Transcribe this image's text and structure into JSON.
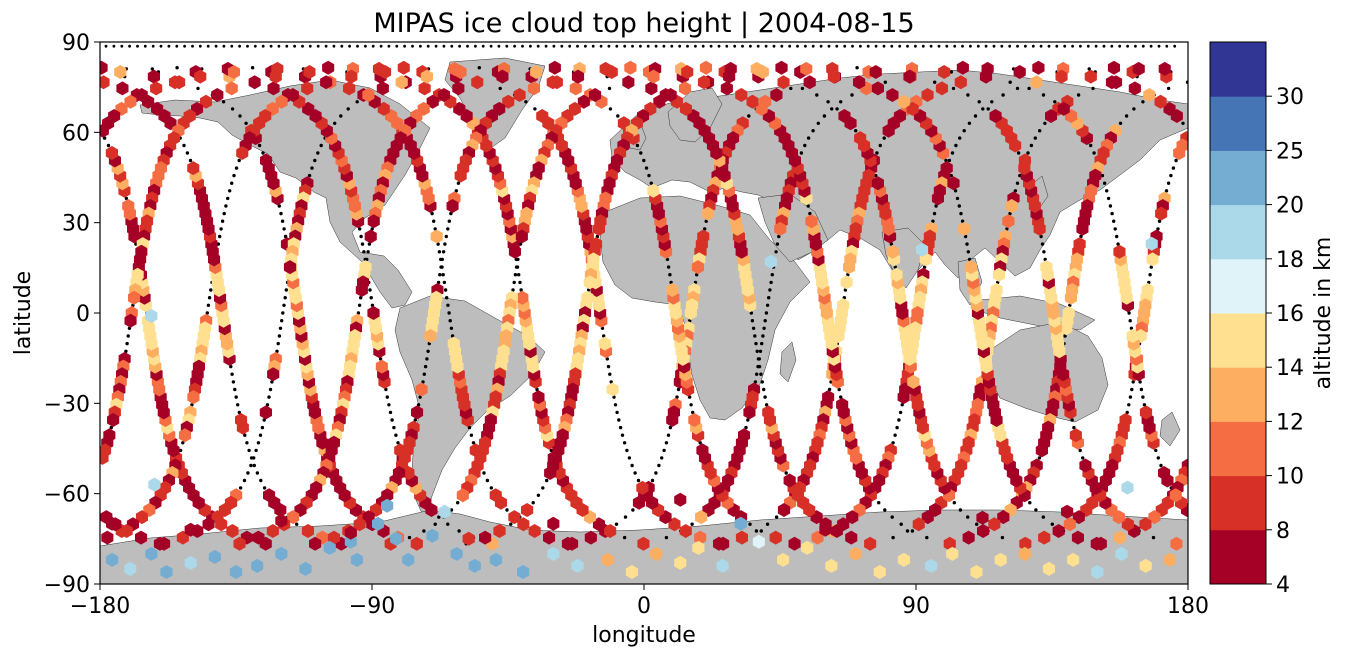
{
  "chart_data": {
    "type": "scatter",
    "title": "MIPAS ice cloud top height | 2004-08-15",
    "xlabel": "longitude",
    "ylabel": "latitude",
    "xlim": [
      -180,
      180
    ],
    "ylim": [
      -90,
      90
    ],
    "xticks": [
      -180,
      -90,
      0,
      90,
      180
    ],
    "yticks": [
      90,
      60,
      30,
      0,
      -30,
      -60,
      -90
    ],
    "xtick_labels": [
      "−180",
      "−90",
      "0",
      "90",
      "180"
    ],
    "ytick_labels": [
      "90",
      "60",
      "30",
      "0",
      "−30",
      "−60",
      "−90"
    ],
    "grid": false,
    "colorbar": {
      "label": "altitude in km",
      "boundaries": [
        4,
        8,
        10,
        12,
        14,
        16,
        18,
        20,
        25,
        30
      ],
      "tick_labels": [
        "4",
        "8",
        "10",
        "12",
        "14",
        "16",
        "18",
        "20",
        "25",
        "30"
      ],
      "colors": [
        "#a50026",
        "#d73027",
        "#f46d43",
        "#fdae61",
        "#fee090",
        "#e0f3f8",
        "#abd9e9",
        "#74add1",
        "#4575b4",
        "#313695"
      ]
    },
    "land_color": "#bdbdbd",
    "orbit_equator_crossing_longitudes": [
      -164.5,
      -139.5,
      -114.5,
      -89.5,
      -64.5,
      -39.5,
      -14.5,
      10.5,
      35.5,
      60.5,
      85.5,
      110.5,
      135.5,
      160.5
    ],
    "polar_clouds": [
      [
        -176,
        -82,
        21
      ],
      [
        -170,
        -85,
        19
      ],
      [
        -163,
        -80,
        22
      ],
      [
        -158,
        -86,
        21
      ],
      [
        -150,
        -83,
        18
      ],
      [
        -142,
        -81,
        22
      ],
      [
        -135,
        -86,
        23
      ],
      [
        -128,
        -84,
        22
      ],
      [
        -120,
        -80,
        22
      ],
      [
        -112,
        -85,
        23
      ],
      [
        -104,
        -78,
        23
      ],
      [
        -97,
        -76,
        22
      ],
      [
        -95,
        -82,
        22
      ],
      [
        -88,
        -70,
        22
      ],
      [
        -85,
        -64,
        22
      ],
      [
        -82,
        -75,
        22
      ],
      [
        -78,
        -82,
        23
      ],
      [
        -70,
        -74,
        22
      ],
      [
        -66,
        -66,
        19
      ],
      [
        -62,
        -80,
        22
      ],
      [
        -56,
        -84,
        22
      ],
      [
        -49,
        -82,
        23
      ],
      [
        -40,
        -86,
        21
      ],
      [
        -30,
        -80,
        19
      ],
      [
        -22,
        -84,
        19
      ],
      [
        -12,
        -82,
        13
      ],
      [
        -4,
        -86,
        15
      ],
      [
        4,
        -80,
        13
      ],
      [
        12,
        -83,
        15
      ],
      [
        18,
        -78,
        15
      ],
      [
        26,
        -84,
        19
      ],
      [
        32,
        -70,
        23
      ],
      [
        38,
        -76,
        17
      ],
      [
        46,
        -82,
        15
      ],
      [
        54,
        -78,
        14
      ],
      [
        62,
        -84,
        15
      ],
      [
        70,
        -80,
        13
      ],
      [
        78,
        -86,
        15
      ],
      [
        86,
        -82,
        14
      ],
      [
        95,
        -84,
        19
      ],
      [
        102,
        -80,
        15
      ],
      [
        110,
        -86,
        15
      ],
      [
        118,
        -82,
        14
      ],
      [
        126,
        -80,
        13
      ],
      [
        134,
        -85,
        15
      ],
      [
        142,
        -82,
        14
      ],
      [
        150,
        -86,
        19
      ],
      [
        158,
        -80,
        19
      ],
      [
        166,
        -84,
        15
      ],
      [
        174,
        -82,
        13
      ],
      [
        -176,
        -70,
        7
      ],
      [
        -150,
        -72,
        7
      ],
      [
        -120,
        -69,
        7
      ],
      [
        -97,
        -73,
        6
      ],
      [
        -58,
        -75,
        8
      ],
      [
        -30,
        -70,
        7
      ],
      [
        12,
        -62,
        6
      ],
      [
        60,
        -72,
        7
      ],
      [
        112,
        -68,
        6
      ],
      [
        140,
        -66,
        7
      ],
      [
        160,
        -58,
        19
      ],
      [
        -162,
        -57,
        19
      ],
      [
        168,
        23,
        18
      ],
      [
        -163,
        -1,
        18
      ],
      [
        42,
        17,
        19
      ],
      [
        92,
        21,
        19
      ]
    ]
  }
}
